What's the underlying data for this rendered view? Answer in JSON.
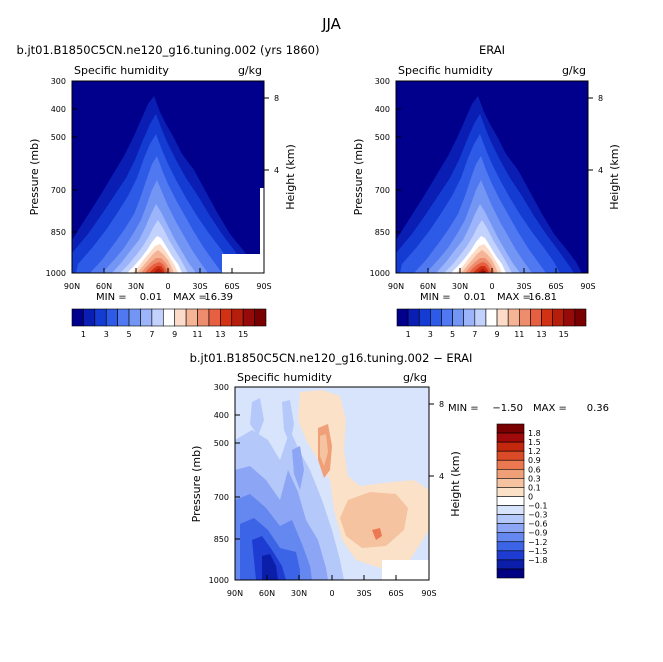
{
  "figure": {
    "season": "JJA"
  },
  "colors": {
    "abs_scale": [
      "#00008c",
      "#0a1eb4",
      "#143cd2",
      "#2d5ae6",
      "#5078f0",
      "#7396f5",
      "#9bb4fa",
      "#c3d2fc",
      "#ffffff",
      "#fcdcc8",
      "#f5b496",
      "#ee8c6e",
      "#e65f41",
      "#d23214",
      "#b41e0a",
      "#960a0a",
      "#780000"
    ],
    "diff_scale": [
      "#000082",
      "#0a1eaa",
      "#1e3cd2",
      "#3c64e6",
      "#6487f0",
      "#8ca5f5",
      "#b4c8fa",
      "#d7e4fc",
      "#ffffff",
      "#fae1c8",
      "#f5c3a0",
      "#f0a078",
      "#eb7850",
      "#dc4b28",
      "#c3280f",
      "#a00a0a",
      "#780000"
    ],
    "panel_fill": "#00008c",
    "diff_fill": "#d7e4fc"
  },
  "chart_data": [
    {
      "type": "heatmap",
      "title": "b.jt01.B1850C5CN.ne120_g16.tuning.002 (yrs 1860)",
      "left_label": "Specific humidity",
      "right_label": "g/kg",
      "ylabel": "Pressure (mb)",
      "y2label": "Height (km)",
      "x_ticks": [
        "90N",
        "60N",
        "30N",
        "0",
        "30S",
        "60S",
        "90S"
      ],
      "y_ticks": [
        "300",
        "400",
        "500",
        "700",
        "850",
        "1000"
      ],
      "y2_ticks": [
        "8",
        "4"
      ],
      "ylim": [
        1000,
        300
      ],
      "min_label": "MIN =",
      "min_value": "0.01",
      "max_label": "MAX =",
      "max_value": "16.39",
      "colorbar_labels": [
        "1",
        "3",
        "5",
        "7",
        "9",
        "11",
        "13",
        "15"
      ]
    },
    {
      "type": "heatmap",
      "title": "ERAI",
      "left_label": "Specific humidity",
      "right_label": "g/kg",
      "ylabel": "Pressure (mb)",
      "y2label": "Height (km)",
      "x_ticks": [
        "90N",
        "60N",
        "30N",
        "0",
        "30S",
        "60S",
        "90S"
      ],
      "y_ticks": [
        "300",
        "400",
        "500",
        "700",
        "850",
        "1000"
      ],
      "y2_ticks": [
        "8",
        "4"
      ],
      "ylim": [
        1000,
        300
      ],
      "min_label": "MIN =",
      "min_value": "0.01",
      "max_label": "MAX =",
      "max_value": "16.81",
      "colorbar_labels": [
        "1",
        "3",
        "5",
        "7",
        "9",
        "11",
        "13",
        "15"
      ]
    },
    {
      "type": "heatmap",
      "title": "b.jt01.B1850C5CN.ne120_g16.tuning.002 − ERAI",
      "left_label": "Specific humidity",
      "right_label": "g/kg",
      "ylabel": "Pressure (mb)",
      "y2label": "Height (km)",
      "x_ticks": [
        "90N",
        "60N",
        "30N",
        "0",
        "30S",
        "60S",
        "90S"
      ],
      "y_ticks": [
        "300",
        "400",
        "500",
        "700",
        "850",
        "1000"
      ],
      "y2_ticks": [
        "8",
        "4"
      ],
      "ylim": [
        1000,
        300
      ],
      "min_label": "MIN =",
      "min_value": "−1.50",
      "max_label": "MAX =",
      "max_value": "0.36",
      "colorbar_labels": [
        "1.8",
        "1.5",
        "1.2",
        "0.9",
        "0.6",
        "0.3",
        "0.1",
        "0",
        "−0.1",
        "−0.3",
        "−0.6",
        "−0.9",
        "−1.2",
        "−1.5",
        "−1.8"
      ]
    }
  ]
}
